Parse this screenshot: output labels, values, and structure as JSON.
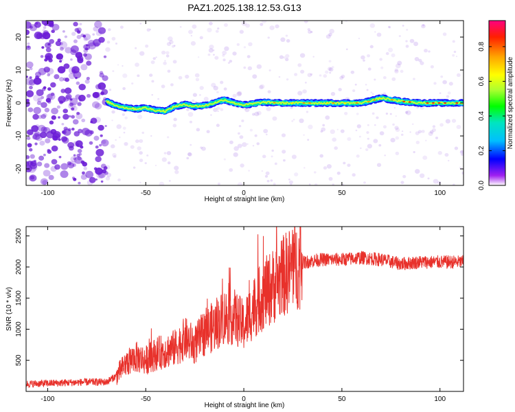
{
  "title": "PAZ1.2025.138.12.53.G13",
  "chart_data": [
    {
      "type": "heatmap",
      "xlabel": "Height of straight line (km)",
      "ylabel": "Frequency (Hz)",
      "xlim": [
        -111,
        112
      ],
      "ylim": [
        -25,
        25
      ],
      "x_ticks": [
        -100,
        -50,
        0,
        50,
        100
      ],
      "x_tick_labels": [
        "-100",
        "-50",
        "0",
        "50",
        "100"
      ],
      "y_ticks": [
        -20,
        -10,
        0,
        10,
        20
      ],
      "y_tick_labels": [
        "-20",
        "-10",
        "0",
        "10",
        "20"
      ],
      "ridge": {
        "description": "dominant frequency line",
        "x": [
          -70,
          -65,
          -60,
          -55,
          -50,
          -45,
          -40,
          -35,
          -30,
          -25,
          -20,
          -15,
          -10,
          -5,
          0,
          10,
          20,
          30,
          40,
          50,
          60,
          70,
          75,
          80,
          90,
          100,
          112
        ],
        "y": [
          0.5,
          -0.8,
          -1.5,
          -1.8,
          -1.5,
          -2.2,
          -2.5,
          -1.0,
          -0.5,
          -1.0,
          -0.8,
          0.0,
          1.0,
          0.0,
          -0.6,
          0.2,
          0.0,
          0.0,
          0.0,
          0.0,
          0.0,
          1.5,
          1.0,
          0.5,
          0.0,
          0.0,
          0.0
        ]
      },
      "noise_region": [
        -111,
        -70
      ],
      "colorbar": {
        "label": "Normalized spectral amplitude",
        "range": [
          0.0,
          0.95
        ],
        "ticks": [
          0.0,
          0.2,
          0.4,
          0.6,
          0.8
        ],
        "tick_labels": [
          "0.0",
          "0.2",
          "0.4",
          "0.6",
          "0.8"
        ]
      }
    },
    {
      "type": "line",
      "xlabel": "Height of straight line (km)",
      "ylabel": "SNR (10 * v/v)",
      "xlim": [
        -111,
        112
      ],
      "ylim": [
        0,
        2650
      ],
      "x_ticks": [
        -100,
        -50,
        0,
        50,
        100
      ],
      "x_tick_labels": [
        "-100",
        "-50",
        "0",
        "50",
        "100"
      ],
      "y_ticks": [
        500,
        1000,
        1500,
        2000,
        2500
      ],
      "y_tick_labels": [
        "500",
        "1000",
        "1500",
        "2000",
        "2500"
      ],
      "series": [
        {
          "name": "SNR",
          "color": "#e8312b",
          "x": [
            -111,
            -100,
            -90,
            -80,
            -70,
            -65,
            -60,
            -55,
            -50,
            -45,
            -40,
            -35,
            -30,
            -25,
            -20,
            -15,
            -10,
            -5,
            0,
            5,
            10,
            15,
            20,
            25,
            30,
            35,
            40,
            50,
            60,
            70,
            80,
            90,
            100,
            112
          ],
          "y": [
            120,
            130,
            140,
            150,
            150,
            250,
            450,
            550,
            500,
            600,
            650,
            700,
            850,
            750,
            950,
            1050,
            1200,
            1200,
            1050,
            1350,
            1550,
            1700,
            1850,
            2000,
            2070,
            2100,
            2120,
            2120,
            2150,
            2120,
            2050,
            2080,
            2080,
            2080
          ]
        }
      ]
    }
  ],
  "colors": {
    "noise": "#6a1bd6",
    "line": "#e8312b"
  }
}
